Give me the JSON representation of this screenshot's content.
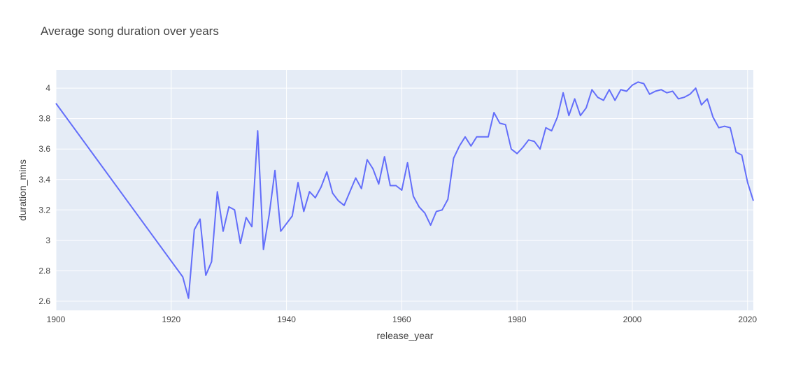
{
  "chart_data": {
    "type": "line",
    "title": "Average song duration over years",
    "xlabel": "release_year",
    "ylabel": "duration_mins",
    "xlim": [
      1900,
      2021
    ],
    "ylim": [
      2.54,
      4.12
    ],
    "xticks": [
      1900,
      1920,
      1940,
      1960,
      1980,
      2000,
      2020
    ],
    "xtick_labels": [
      "1900",
      "1920",
      "1940",
      "1960",
      "1980",
      "2000",
      "2020"
    ],
    "yticks": [
      2.6,
      2.8,
      3,
      3.2,
      3.4,
      3.6,
      3.8,
      4
    ],
    "ytick_labels": [
      "2.6",
      "2.8",
      "3",
      "3.2",
      "3.4",
      "3.6",
      "3.8",
      "4"
    ],
    "grid": true,
    "colors": {
      "line": "#636efa",
      "plot_bg": "#e5ecf6",
      "grid": "#ffffff",
      "text": "#444444"
    },
    "series": [
      {
        "x": [
          1900,
          1922,
          1923,
          1924,
          1925,
          1926,
          1927,
          1928,
          1929,
          1930,
          1931,
          1932,
          1933,
          1934,
          1935,
          1936,
          1937,
          1938,
          1939,
          1940,
          1941,
          1942,
          1943,
          1944,
          1945,
          1946,
          1947,
          1948,
          1949,
          1950,
          1951,
          1952,
          1953,
          1954,
          1955,
          1956,
          1957,
          1958,
          1959,
          1960,
          1961,
          1962,
          1963,
          1964,
          1965,
          1966,
          1967,
          1968,
          1969,
          1970,
          1971,
          1972,
          1973,
          1974,
          1975,
          1976,
          1977,
          1978,
          1979,
          1980,
          1981,
          1982,
          1983,
          1984,
          1985,
          1986,
          1987,
          1988,
          1989,
          1990,
          1991,
          1992,
          1993,
          1994,
          1995,
          1996,
          1997,
          1998,
          1999,
          2000,
          2001,
          2002,
          2003,
          2004,
          2005,
          2006,
          2007,
          2008,
          2009,
          2010,
          2011,
          2012,
          2013,
          2014,
          2015,
          2016,
          2017,
          2018,
          2019,
          2020,
          2021
        ],
        "values": [
          3.9,
          2.76,
          2.62,
          3.07,
          3.14,
          2.77,
          2.86,
          3.32,
          3.06,
          3.22,
          3.2,
          2.98,
          3.15,
          3.09,
          3.72,
          2.94,
          3.17,
          3.46,
          3.06,
          3.11,
          3.16,
          3.38,
          3.19,
          3.32,
          3.28,
          3.35,
          3.45,
          3.31,
          3.26,
          3.23,
          3.32,
          3.41,
          3.34,
          3.53,
          3.47,
          3.37,
          3.55,
          3.36,
          3.36,
          3.33,
          3.51,
          3.29,
          3.22,
          3.18,
          3.1,
          3.19,
          3.2,
          3.27,
          3.54,
          3.62,
          3.68,
          3.62,
          3.68,
          3.68,
          3.68,
          3.84,
          3.77,
          3.76,
          3.6,
          3.57,
          3.61,
          3.66,
          3.65,
          3.6,
          3.74,
          3.72,
          3.81,
          3.97,
          3.82,
          3.93,
          3.82,
          3.87,
          3.99,
          3.94,
          3.92,
          3.99,
          3.92,
          3.99,
          3.98,
          4.02,
          4.04,
          4.03,
          3.96,
          3.98,
          3.99,
          3.97,
          3.98,
          3.93,
          3.94,
          3.96,
          4,
          3.89,
          3.93,
          3.81,
          3.74,
          3.75,
          3.74,
          3.58,
          3.56,
          3.38,
          3.26
        ]
      }
    ]
  }
}
